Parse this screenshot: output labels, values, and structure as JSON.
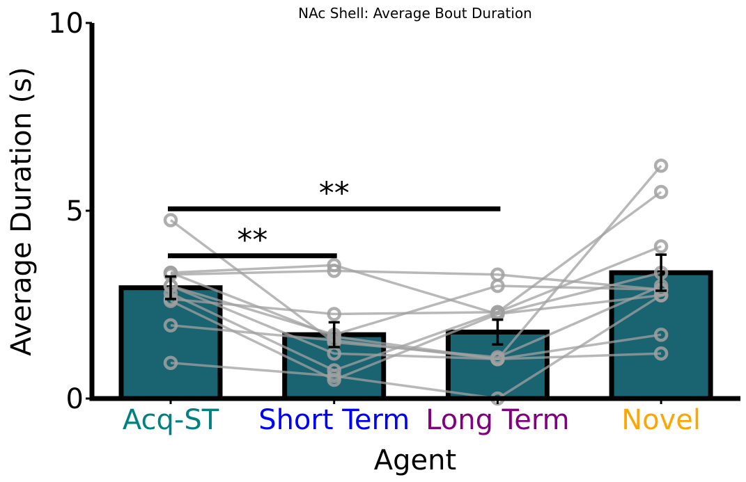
{
  "chart_data": {
    "type": "bar",
    "title": "NAc Shell: Average Bout Duration",
    "xlabel": "Agent",
    "ylabel": "Average Duration (s)",
    "ylim": [
      0,
      10
    ],
    "yticks": [
      0,
      5,
      10
    ],
    "categories": [
      "Acq-ST",
      "Short Term",
      "Long Term",
      "Novel"
    ],
    "category_colors": [
      "#008080",
      "#0000ff",
      "#800080",
      "#ffa500"
    ],
    "bar_color": "#1a6370",
    "values": [
      2.95,
      1.7,
      1.77,
      3.35
    ],
    "errors": [
      0.3,
      0.33,
      0.33,
      0.48
    ],
    "subjects": [
      [
        4.75,
        1.5,
        1.1,
        3.0
      ],
      [
        3.35,
        3.55,
        2.25,
        2.75
      ],
      [
        3.3,
        3.4,
        3.3,
        2.9
      ],
      [
        3.0,
        1.2,
        1.05,
        6.2
      ],
      [
        2.8,
        0.75,
        2.3,
        5.5
      ],
      [
        2.65,
        2.25,
        2.3,
        4.05
      ],
      [
        2.6,
        0.5,
        2.25,
        3.35
      ],
      [
        1.95,
        1.55,
        1.05,
        1.7
      ],
      [
        0.95,
        0.6,
        0.0,
        2.75
      ],
      [
        3.35,
        1.65,
        1.05,
        1.2
      ],
      [
        3.0,
        1.7,
        3.0,
        2.9
      ]
    ],
    "comparisons": [
      {
        "from": 0,
        "to": 1,
        "y": 3.8,
        "label": "**"
      },
      {
        "from": 0,
        "to": 2,
        "y": 5.05,
        "label": "**"
      }
    ],
    "grid": false,
    "legend": "none"
  }
}
